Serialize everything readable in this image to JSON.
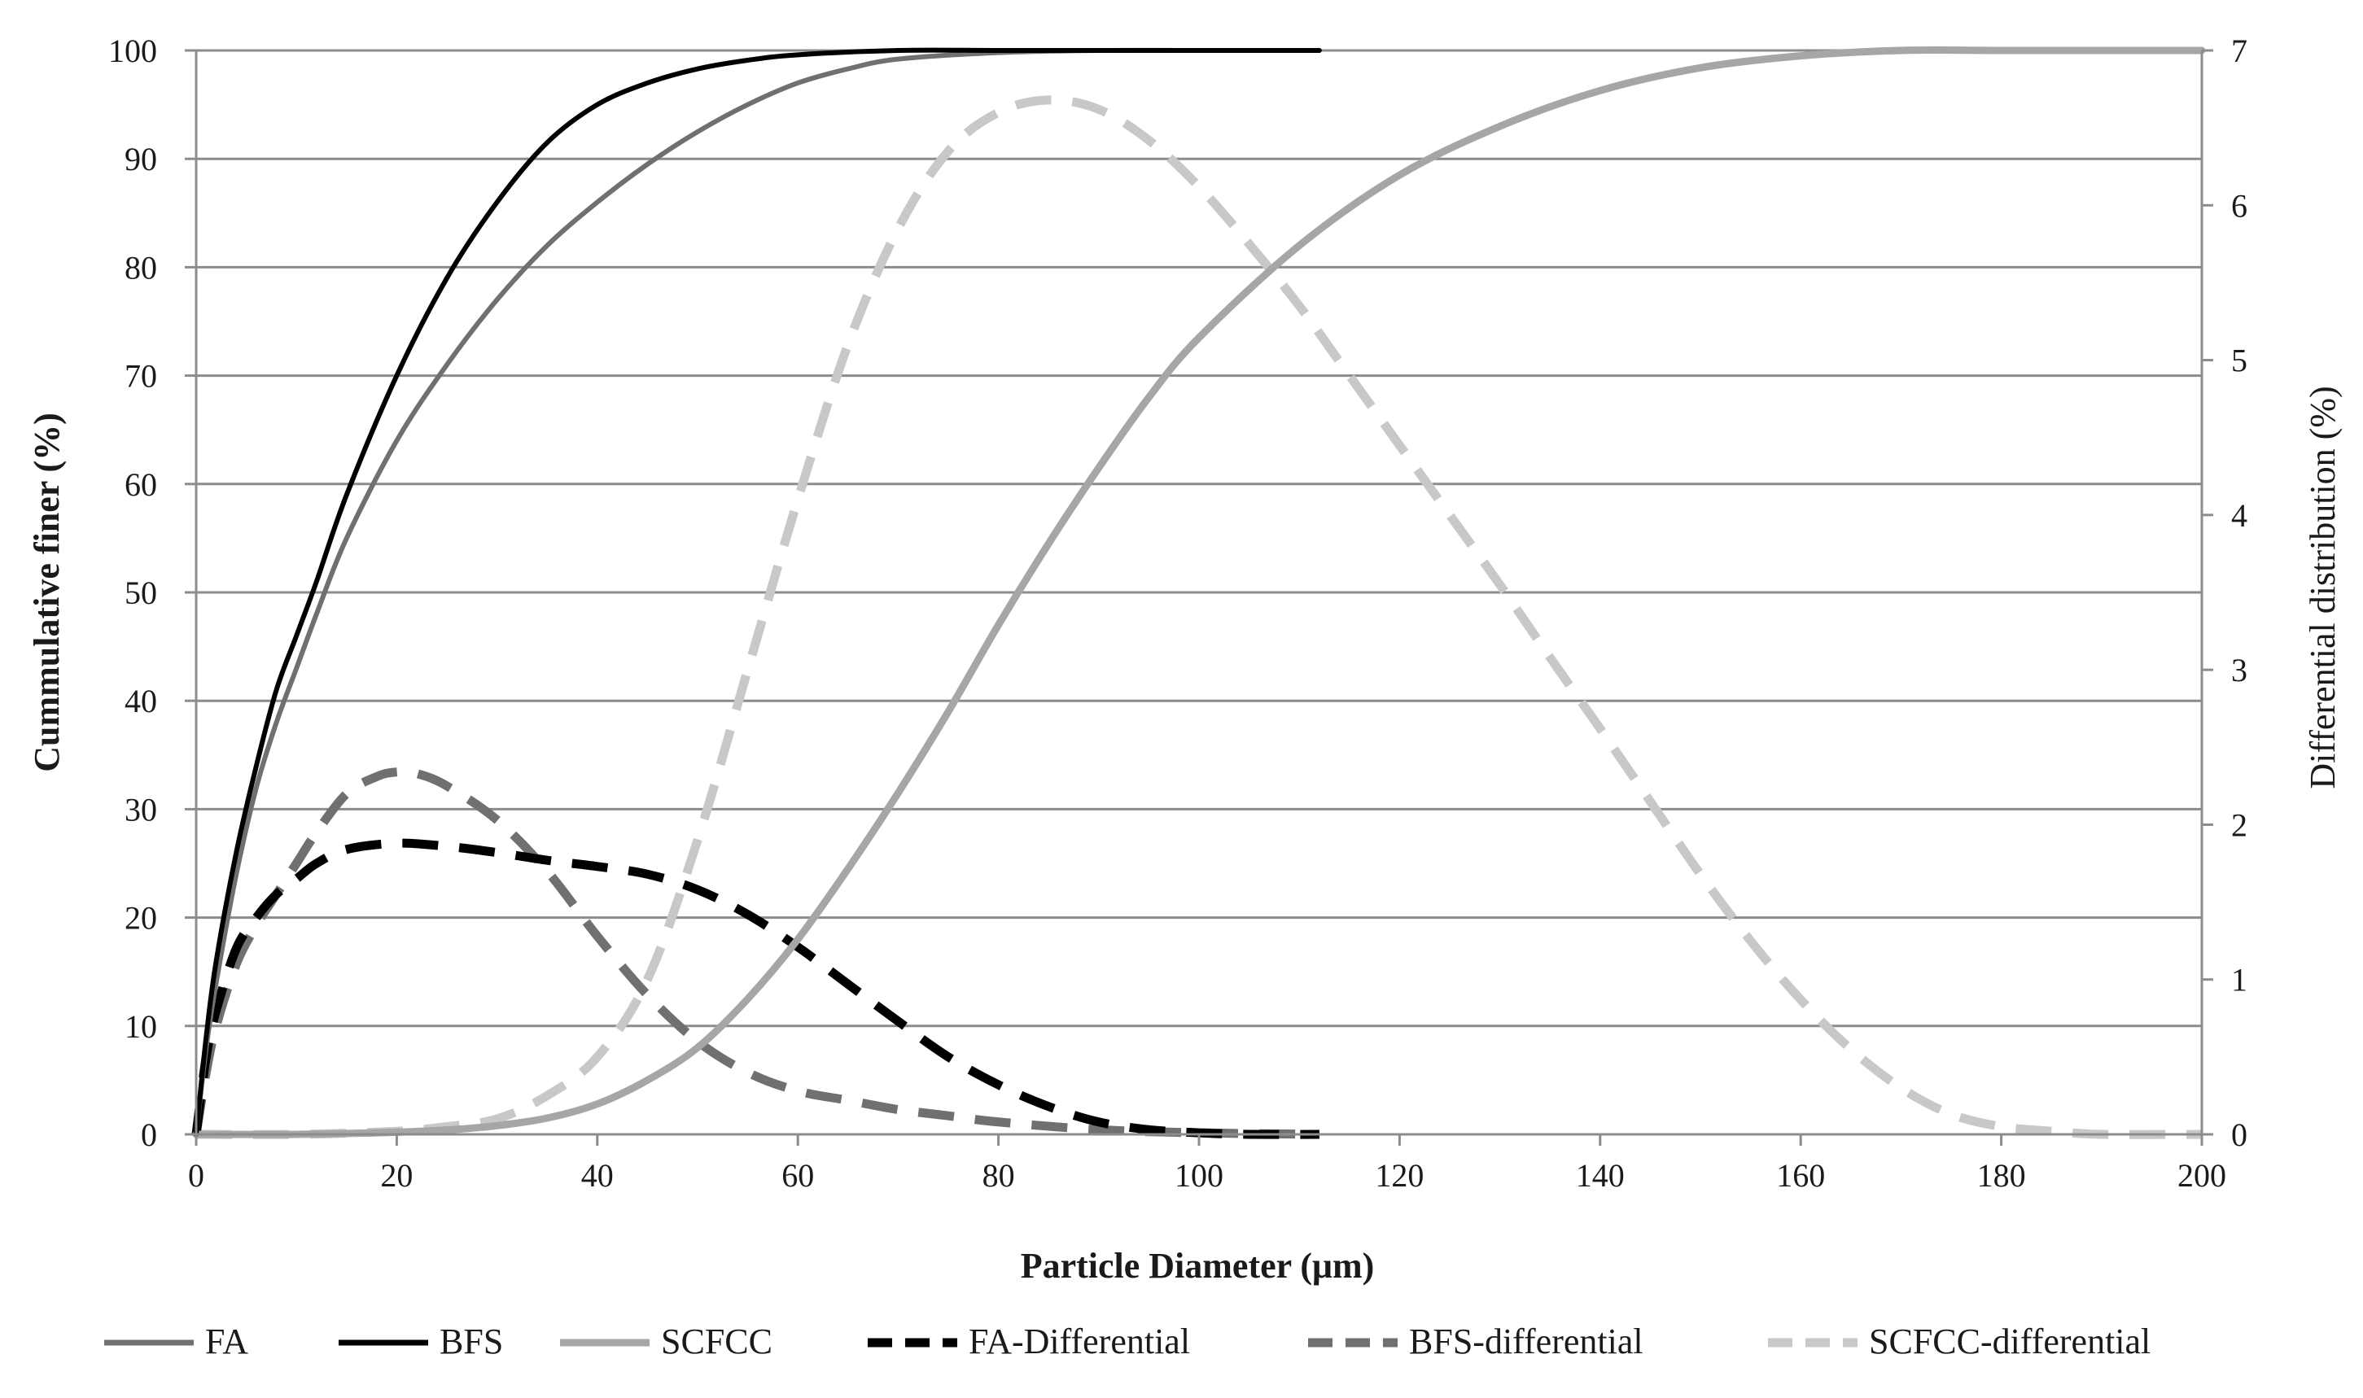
{
  "chart_data": {
    "type": "line",
    "title": "",
    "xlabel": "Particle Diameter (μm)",
    "ylabel": "Cummulative finer (%)",
    "y2label": "Differential distribution (%)",
    "xlim": [
      0,
      200
    ],
    "ylim": [
      0,
      100
    ],
    "y2lim": [
      0,
      7
    ],
    "x_ticks": [
      "0",
      "20",
      "40",
      "60",
      "80",
      "100",
      "120",
      "140",
      "160",
      "180",
      "200"
    ],
    "y_ticks": [
      "0",
      "10",
      "20",
      "30",
      "40",
      "50",
      "60",
      "70",
      "80",
      "90",
      "100"
    ],
    "y2_ticks": [
      "0",
      "1",
      "2",
      "3",
      "4",
      "5",
      "6",
      "7"
    ],
    "grid": true,
    "legend_position": "bottom",
    "series": [
      {
        "name": "FA",
        "axis": "left",
        "style": "solid",
        "color": "#707070",
        "x": [
          0,
          1,
          2,
          4,
          6,
          8,
          10,
          12,
          15,
          20,
          25,
          30,
          35,
          40,
          45,
          50,
          55,
          60,
          65,
          70,
          80,
          90,
          100,
          112
        ],
        "y": [
          0,
          8,
          14,
          24,
          32,
          38,
          43,
          48,
          55,
          64,
          71,
          77,
          82,
          86,
          89.5,
          92.5,
          95,
          97,
          98.3,
          99.2,
          99.8,
          100,
          100,
          100
        ]
      },
      {
        "name": "BFS",
        "axis": "left",
        "style": "solid",
        "color": "#000000",
        "x": [
          0,
          1,
          2,
          4,
          6,
          8,
          10,
          12,
          15,
          20,
          25,
          30,
          35,
          40,
          45,
          50,
          55,
          60,
          70,
          80,
          90,
          100,
          112
        ],
        "y": [
          0,
          9,
          16,
          26,
          34,
          41,
          46,
          51,
          59,
          70,
          79,
          86,
          91.5,
          95,
          97,
          98.3,
          99.1,
          99.6,
          100,
          100,
          100,
          100,
          100
        ]
      },
      {
        "name": "SCFCC",
        "axis": "left",
        "style": "solid",
        "color": "#a6a6a6",
        "x": [
          0,
          10,
          20,
          25,
          30,
          35,
          40,
          45,
          50,
          55,
          60,
          65,
          70,
          75,
          80,
          85,
          90,
          95,
          100,
          110,
          120,
          130,
          140,
          150,
          160,
          170,
          180,
          190,
          200
        ],
        "y": [
          0,
          0,
          0.2,
          0.4,
          0.8,
          1.5,
          2.8,
          5,
          8,
          12.5,
          18,
          24.5,
          31.5,
          39,
          47,
          54.5,
          61.5,
          68,
          73.5,
          82,
          88.5,
          93,
          96.3,
          98.4,
          99.5,
          100,
          100,
          100,
          100
        ]
      },
      {
        "name": "FA-Differential",
        "axis": "right",
        "style": "dashed",
        "color": "#000000",
        "x": [
          0,
          1,
          2,
          4,
          6,
          8,
          10,
          12,
          15,
          20,
          25,
          30,
          35,
          40,
          45,
          50,
          55,
          60,
          65,
          70,
          75,
          80,
          85,
          90,
          95,
          100,
          105,
          112
        ],
        "y": [
          0,
          0.5,
          0.8,
          1.2,
          1.4,
          1.55,
          1.65,
          1.75,
          1.84,
          1.88,
          1.86,
          1.82,
          1.77,
          1.73,
          1.68,
          1.58,
          1.42,
          1.21,
          0.97,
          0.73,
          0.5,
          0.32,
          0.18,
          0.08,
          0.03,
          0.01,
          0,
          0
        ]
      },
      {
        "name": "BFS-differential",
        "axis": "right",
        "style": "dashed",
        "color": "#707070",
        "x": [
          0,
          1,
          2,
          4,
          6,
          8,
          10,
          12,
          15,
          18,
          20,
          22,
          25,
          30,
          35,
          40,
          45,
          50,
          55,
          60,
          65,
          70,
          75,
          80,
          90,
          100,
          112
        ],
        "y": [
          0,
          0.4,
          0.7,
          1.1,
          1.35,
          1.55,
          1.75,
          1.95,
          2.2,
          2.31,
          2.34,
          2.33,
          2.25,
          2.03,
          1.7,
          1.28,
          0.9,
          0.6,
          0.4,
          0.28,
          0.22,
          0.16,
          0.12,
          0.08,
          0.03,
          0.01,
          0
        ]
      },
      {
        "name": "SCFCC-differential",
        "axis": "right",
        "style": "dashed",
        "color": "#c8c8c8",
        "x": [
          0,
          10,
          20,
          25,
          30,
          35,
          40,
          45,
          50,
          55,
          60,
          65,
          70,
          75,
          80,
          85,
          90,
          95,
          100,
          105,
          110,
          115,
          120,
          125,
          130,
          135,
          140,
          145,
          150,
          155,
          160,
          165,
          170,
          175,
          180,
          185,
          190,
          200
        ],
        "y": [
          0,
          0,
          0.02,
          0.05,
          0.1,
          0.25,
          0.5,
          1.0,
          1.9,
          3.0,
          4.1,
          5.1,
          5.85,
          6.35,
          6.6,
          6.68,
          6.62,
          6.42,
          6.12,
          5.75,
          5.35,
          4.9,
          4.45,
          4.0,
          3.55,
          3.08,
          2.62,
          2.15,
          1.68,
          1.25,
          0.87,
          0.55,
          0.3,
          0.13,
          0.05,
          0.02,
          0,
          0
        ]
      }
    ]
  }
}
